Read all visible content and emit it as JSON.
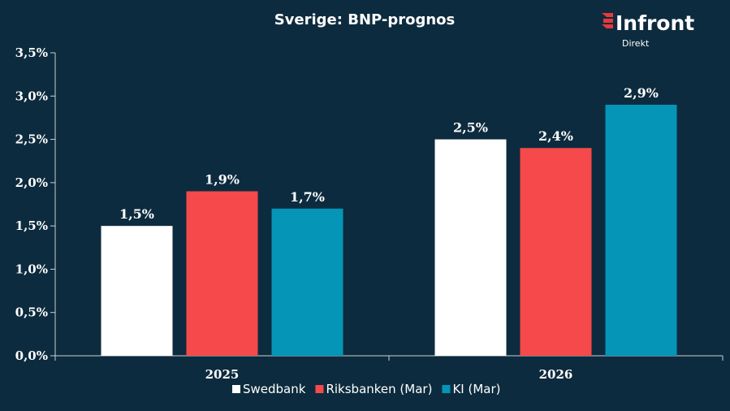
{
  "logo": {
    "name": "Infront",
    "subtitle": "Direkt"
  },
  "chart_data": {
    "type": "bar",
    "title": "Sverige:  BNP-prognos",
    "categories": [
      "2025",
      "2026"
    ],
    "series": [
      {
        "name": "Swedbank",
        "values": [
          1.5,
          2.5
        ],
        "labels": [
          "1,5%",
          "2,5%"
        ],
        "color": "#ffffff"
      },
      {
        "name": "Riksbanken (Mar)",
        "values": [
          1.9,
          2.4
        ],
        "labels": [
          "1,9%",
          "2,4%"
        ],
        "color": "#f5494b"
      },
      {
        "name": "KI (Mar)",
        "values": [
          1.7,
          2.9
        ],
        "labels": [
          "1,7%",
          "2,9%"
        ],
        "color": "#0495b7"
      }
    ],
    "ylim": [
      0,
      3.5
    ],
    "yticks": [
      0,
      0.5,
      1.0,
      1.5,
      2.0,
      2.5,
      3.0,
      3.5
    ],
    "ytick_labels": [
      "0,0%",
      "0,5%",
      "1,0%",
      "1,5%",
      "2,0%",
      "2,5%",
      "3,0%",
      "3,5%"
    ],
    "xlabel": "",
    "ylabel": "",
    "grid": false,
    "legend": "bottom"
  },
  "colors": {
    "background": "#0d2b3e",
    "axis": "#c8d0d6",
    "logo_accent": "#e8383d"
  }
}
